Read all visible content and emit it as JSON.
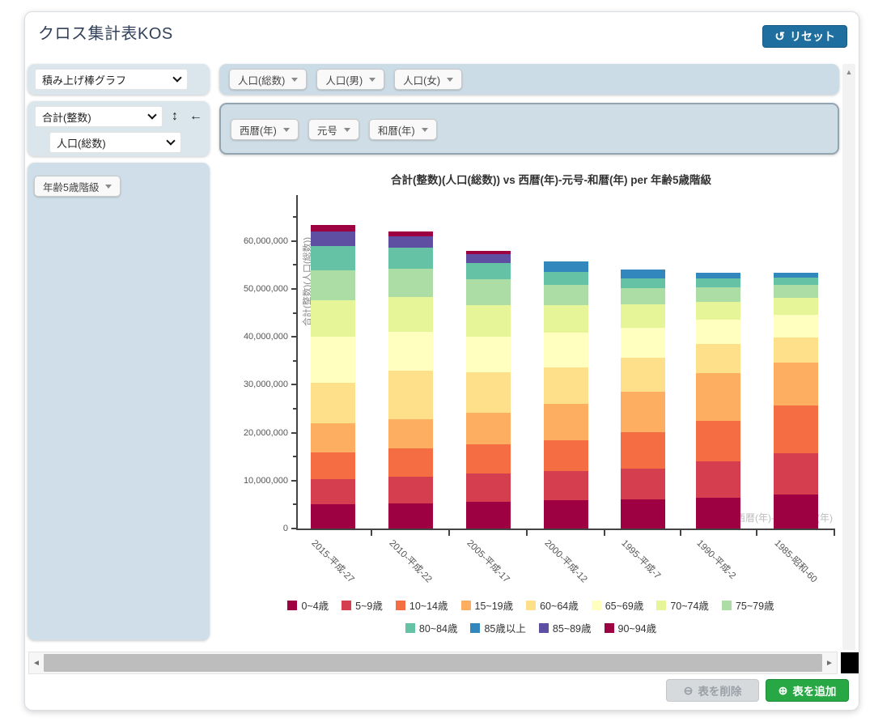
{
  "header": {
    "title": "クロス集計表KOS",
    "reset_label": "リセット"
  },
  "controls": {
    "chart_type_select": "積み上げ棒グラフ",
    "measure_select": "合計(整数)",
    "measure_sub_select": "人口(総数)",
    "swap_icon": "updown-arrow",
    "move_left_icon": "left-arrow",
    "row_dimension_pill": "年齢5歳階級",
    "column_pills": [
      "人口(総数)",
      "人口(男)",
      "人口(女)"
    ],
    "axis_pills": [
      "西暦(年)",
      "元号",
      "和暦(年)"
    ]
  },
  "footer": {
    "delete_label": "表を削除",
    "add_label": "表を追加",
    "add_color": "#28a745"
  },
  "chart_data": {
    "type": "bar",
    "stacked": true,
    "title": "合計(整数)(人口(総数)) vs 西暦(年)-元号-和暦(年) per 年齢5歳階級",
    "xlabel": "西暦(年)-元号-和暦(年)",
    "ylabel": "合計(整数)(人口(総数))",
    "ylim": [
      0,
      69600000
    ],
    "y_tick_values": [
      0,
      10000000,
      20000000,
      30000000,
      40000000,
      50000000,
      60000000
    ],
    "grid": false,
    "legend_position": "bottom",
    "categories": [
      "2015-平成-27",
      "2010-平成-22",
      "2005-平成-17",
      "2000-平成-12",
      "1995-平成-7",
      "1990-平成-2",
      "1985-昭和-60"
    ],
    "series": [
      {
        "name": "0~4歳",
        "color": "#9e0142",
        "values": [
          4988000,
          5297000,
          5578000,
          5904000,
          6001000,
          6493000,
          7176000
        ]
      },
      {
        "name": "5~9歳",
        "color": "#d53e4f",
        "values": [
          5300000,
          5586000,
          5928000,
          6022000,
          6545000,
          7468000,
          8551000
        ]
      },
      {
        "name": "10~14歳",
        "color": "#f46d43",
        "values": [
          5599000,
          5921000,
          6015000,
          6547000,
          7481000,
          8526000,
          10010000
        ]
      },
      {
        "name": "15~19歳",
        "color": "#fdae61",
        "values": [
          6008000,
          6063000,
          6568000,
          7488000,
          8557000,
          10007000,
          8952000
        ]
      },
      {
        "name": "60~64歳",
        "color": "#fee08b",
        "values": [
          8455000,
          10037000,
          8545000,
          7735000,
          7069000,
          5951000,
          5134000
        ]
      },
      {
        "name": "65~69歳",
        "color": "#ffffbf",
        "values": [
          9644000,
          8210000,
          7433000,
          7106000,
          6200000,
          5099000,
          4748000
        ]
      },
      {
        "name": "70~74歳",
        "color": "#e6f598",
        "values": [
          7696000,
          7185000,
          6637000,
          5901000,
          4984000,
          3818000,
          3567000
        ]
      },
      {
        "name": "75~79歳",
        "color": "#abdda4",
        "values": [
          6277000,
          5941000,
          5263000,
          4151000,
          3290000,
          3017000,
          2631000
        ]
      },
      {
        "name": "80~84歳",
        "color": "#66c2a5",
        "values": [
          4961000,
          4336000,
          3412000,
          2615000,
          2130000,
          1832000,
          1615000
        ]
      },
      {
        "name": "85歳以上",
        "color": "#3288bd",
        "values": [
          0,
          0,
          0,
          2233000,
          1850000,
          1158000,
          920000
        ]
      },
      {
        "name": "85~89歳",
        "color": "#5e4fa2",
        "values": [
          3117000,
          2433000,
          1849000,
          0,
          0,
          0,
          0
        ]
      },
      {
        "name": "90~94歳",
        "color": "#9e0142",
        "values": [
          1364000,
          1022000,
          772000,
          0,
          0,
          0,
          0
        ]
      }
    ]
  }
}
